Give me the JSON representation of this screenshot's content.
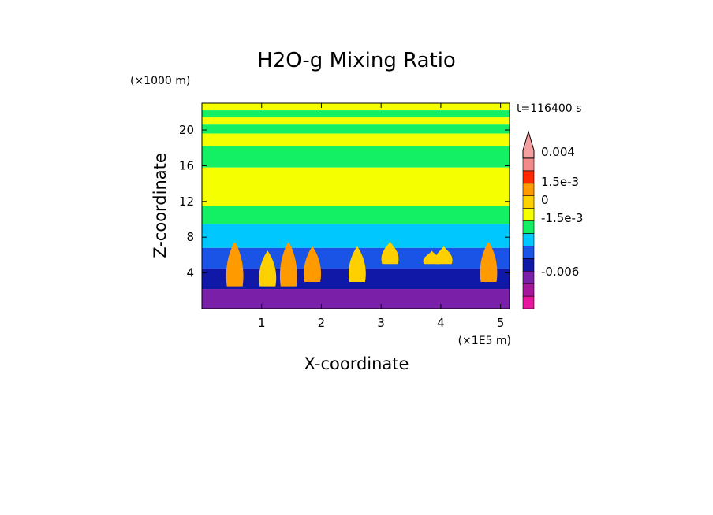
{
  "chart_data": {
    "type": "heatmap",
    "title": "H2O-g Mixing Ratio",
    "time_label": "t=116400 s",
    "xlabel": "X-coordinate",
    "ylabel": "Z-coordinate",
    "x_unit": "(×1E5 m)",
    "y_unit": "(×1000 m)",
    "xlim": [
      0,
      5.15
    ],
    "ylim": [
      0,
      23
    ],
    "x_ticks": [
      1,
      2,
      3,
      4,
      5
    ],
    "y_ticks": [
      4,
      8,
      12,
      16,
      20
    ],
    "x_tick_labels": [
      "1",
      "2",
      "3",
      "4",
      "5"
    ],
    "y_tick_labels": [
      "4",
      "8",
      "12",
      "16",
      "20"
    ],
    "colorbar": {
      "levels": [
        {
          "upper": -0.006,
          "color": "#e6179b"
        },
        {
          "upper": -0.0045,
          "color": "#a4169a"
        },
        {
          "upper": -0.003,
          "color": "#7a1fa8"
        },
        {
          "upper": -0.0022,
          "color": "#1018a8"
        },
        {
          "upper": -0.0015,
          "color": "#1a54e6"
        },
        {
          "upper": -0.0008,
          "color": "#00c8ff"
        },
        {
          "upper": 0,
          "color": "#14f063"
        },
        {
          "upper": 0.0008,
          "color": "#f5ff00"
        },
        {
          "upper": 0.0015,
          "color": "#ffd000"
        },
        {
          "upper": 0.0022,
          "color": "#ff9a00"
        },
        {
          "upper": 0.0032,
          "color": "#ff2a00"
        },
        {
          "upper": 0.004,
          "color": "#f38b8b"
        },
        {
          "upper": 0.006,
          "color": "#f5a0a0"
        }
      ],
      "labels": [
        "0.004",
        "1.5e-3",
        "0",
        "-1.5e-3",
        "-0.006"
      ],
      "extend": "both"
    },
    "field_rows_top_to_bottom": [
      {
        "z_top": 23,
        "z_bottom": 22.2,
        "value": 0.0004
      },
      {
        "z_top": 22.2,
        "z_bottom": 21.4,
        "value": -0.0004
      },
      {
        "z_top": 21.4,
        "z_bottom": 20.6,
        "value": 0.0004
      },
      {
        "z_top": 20.6,
        "z_bottom": 19.6,
        "value": -0.0004
      },
      {
        "z_top": 19.6,
        "z_bottom": 18.2,
        "value": 0.0004
      },
      {
        "z_top": 18.2,
        "z_bottom": 15.8,
        "value": -0.0004
      },
      {
        "z_top": 15.8,
        "z_bottom": 11.5,
        "value": 0.0004
      },
      {
        "z_top": 11.5,
        "z_bottom": 9.5,
        "value": -0.0004
      },
      {
        "z_top": 9.5,
        "z_bottom": 6.8,
        "value": -0.0012
      },
      {
        "z_top": 6.8,
        "z_bottom": 4.5,
        "value": -0.0018
      },
      {
        "z_top": 4.5,
        "z_bottom": 2.2,
        "value": -0.0026
      },
      {
        "z_top": 2.2,
        "z_bottom": 0,
        "value": -0.0038
      }
    ],
    "plumes": [
      {
        "x": 0.55,
        "z_base": 2.5,
        "z_top": 7.5,
        "value": 0.0018
      },
      {
        "x": 1.1,
        "z_base": 2.5,
        "z_top": 6.5,
        "value": 0.0012
      },
      {
        "x": 1.45,
        "z_base": 2.5,
        "z_top": 7.5,
        "value": 0.0018
      },
      {
        "x": 1.85,
        "z_base": 3.0,
        "z_top": 7.0,
        "value": 0.0018
      },
      {
        "x": 2.6,
        "z_base": 3.0,
        "z_top": 7.0,
        "value": 0.0012
      },
      {
        "x": 3.15,
        "z_base": 5.0,
        "z_top": 7.5,
        "value": 0.001
      },
      {
        "x": 3.85,
        "z_base": 5.0,
        "z_top": 6.5,
        "value": 0.001
      },
      {
        "x": 4.05,
        "z_base": 5.0,
        "z_top": 7.0,
        "value": 0.001
      },
      {
        "x": 4.8,
        "z_base": 3.0,
        "z_top": 7.5,
        "value": 0.0018
      }
    ]
  }
}
